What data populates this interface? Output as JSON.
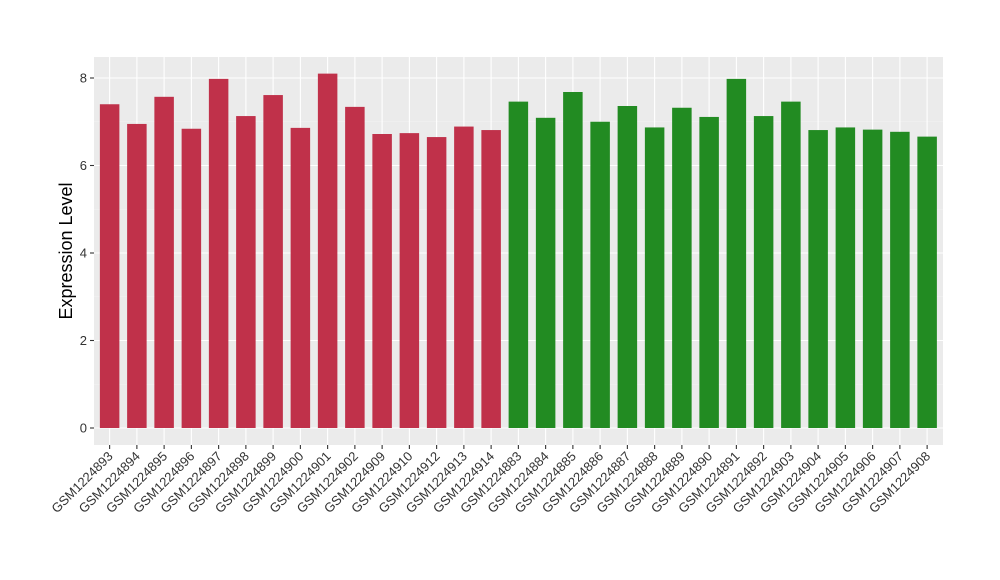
{
  "chart_data": {
    "type": "bar",
    "title": "",
    "xlabel": "",
    "ylabel": "Expression Level",
    "ylim": [
      0,
      8.4
    ],
    "yticks": [
      0,
      2,
      4,
      6,
      8
    ],
    "grid": true,
    "legend": "none",
    "categories": [
      "GSM1224893",
      "GSM1224894",
      "GSM1224895",
      "GSM1224896",
      "GSM1224897",
      "GSM1224898",
      "GSM1224899",
      "GSM1224900",
      "GSM1224901",
      "GSM1224902",
      "GSM1224909",
      "GSM1224910",
      "GSM1224912",
      "GSM1224913",
      "GSM1224914",
      "GSM1224883",
      "GSM1224884",
      "GSM1224885",
      "GSM1224886",
      "GSM1224887",
      "GSM1224888",
      "GSM1224889",
      "GSM1224890",
      "GSM1224891",
      "GSM1224892",
      "GSM1224903",
      "GSM1224904",
      "GSM1224905",
      "GSM1224906",
      "GSM1224907",
      "GSM1224908"
    ],
    "values": [
      7.4,
      6.95,
      7.57,
      6.84,
      7.98,
      7.13,
      7.61,
      6.86,
      8.1,
      7.34,
      6.72,
      6.74,
      6.65,
      6.89,
      6.81,
      7.46,
      7.09,
      7.68,
      7.0,
      7.36,
      6.87,
      7.32,
      7.11,
      7.98,
      7.13,
      7.46,
      6.81,
      6.87,
      6.82,
      6.77,
      6.66
    ],
    "groups": [
      "red",
      "red",
      "red",
      "red",
      "red",
      "red",
      "red",
      "red",
      "red",
      "red",
      "red",
      "red",
      "red",
      "red",
      "red",
      "green",
      "green",
      "green",
      "green",
      "green",
      "green",
      "green",
      "green",
      "green",
      "green",
      "green",
      "green",
      "green",
      "green",
      "green",
      "green"
    ],
    "colors": {
      "red": "#c0314a",
      "green": "#228b22",
      "panel": "#ebebeb",
      "grid_major": "#ffffff",
      "grid_minor": "#f3f3f3"
    }
  }
}
